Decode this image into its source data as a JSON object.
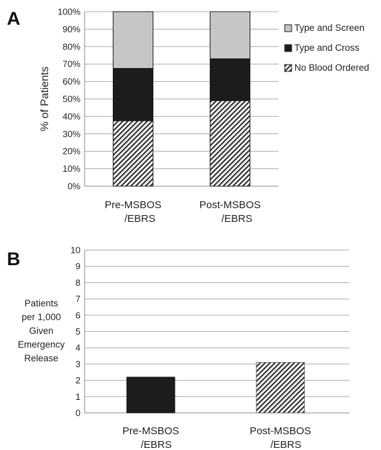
{
  "panels": {
    "a": {
      "letter": "A"
    },
    "b": {
      "letter": "B"
    }
  },
  "colors": {
    "type_and_screen": "#c6c6c6",
    "type_and_cross": "#1c1c1c",
    "no_blood_ordered_hatch": "#333333",
    "gridline": "#a8a8a8"
  },
  "chart_data": [
    {
      "type": "bar",
      "stacked": true,
      "panel": "A",
      "categories": [
        [
          "Pre-MSBOS",
          "/EBRS"
        ],
        [
          "Post-MSBOS",
          "/EBRS"
        ]
      ],
      "series": [
        {
          "name": "No Blood Ordered",
          "fill": "hatch",
          "values": [
            37.5,
            49
          ]
        },
        {
          "name": "Type and Cross",
          "fill": "#1c1c1c",
          "values": [
            30,
            24
          ]
        },
        {
          "name": "Type and Screen",
          "fill": "#c6c6c6",
          "values": [
            32.5,
            27
          ]
        }
      ],
      "legend_order": [
        "Type and Screen",
        "Type and Cross",
        "No Blood Ordered"
      ],
      "ylabel": "% of Patients",
      "ylim": [
        0,
        100
      ],
      "yticks": [
        "0%",
        "10%",
        "20%",
        "30%",
        "40%",
        "50%",
        "60%",
        "70%",
        "80%",
        "90%",
        "100%"
      ],
      "grid": true,
      "legend_position": "right"
    },
    {
      "type": "bar",
      "panel": "B",
      "categories": [
        [
          "Pre-MSBOS",
          "/EBRS"
        ],
        [
          "Post-MSBOS",
          "/EBRS"
        ]
      ],
      "values": [
        2.2,
        3.1
      ],
      "bar_fills": [
        "#1c1c1c",
        "hatch"
      ],
      "ylabel": [
        "Patients",
        "per 1,000",
        "Given",
        "Emergency",
        "Release"
      ],
      "ylim": [
        0,
        10
      ],
      "yticks": [
        "0",
        "1",
        "2",
        "3",
        "4",
        "5",
        "6",
        "7",
        "8",
        "9",
        "10"
      ],
      "grid": true
    }
  ]
}
